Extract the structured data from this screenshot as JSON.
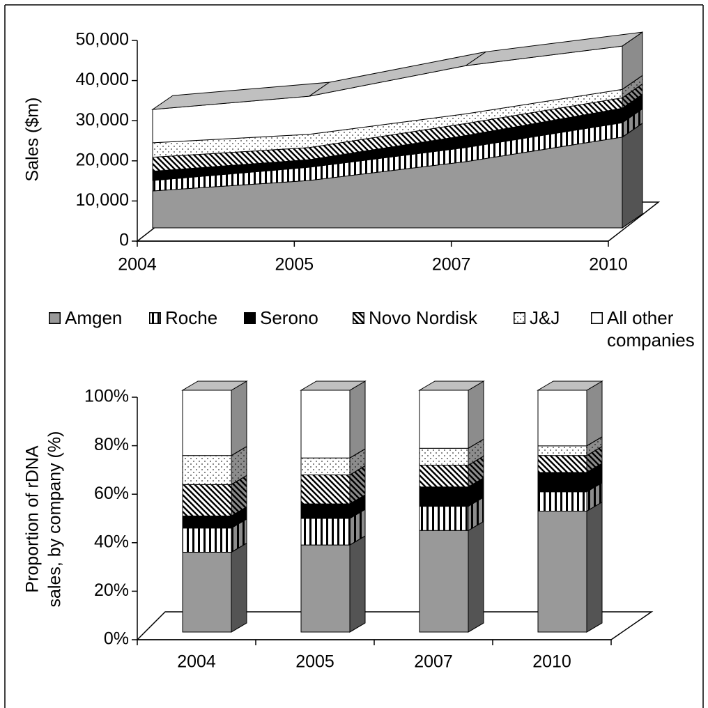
{
  "chart_data": [
    {
      "type": "area",
      "stacked": true,
      "three_d": true,
      "ylabel": "Sales ($m)",
      "categories": [
        "2004",
        "2005",
        "2007",
        "2010"
      ],
      "series": [
        {
          "name": "Amgen",
          "color": "#999999",
          "pattern": "solid",
          "values": [
            9200,
            11800,
            16500,
            22600
          ]
        },
        {
          "name": "Roche",
          "color": "#000000",
          "pattern": "vertical",
          "values": [
            2600,
            3300,
            3500,
            3600
          ]
        },
        {
          "name": "Serono",
          "color": "#000000",
          "pattern": "solid",
          "values": [
            2300,
            1900,
            3000,
            3600
          ]
        },
        {
          "name": "Novo Nordisk",
          "color": "#000000",
          "pattern": "diagonal",
          "values": [
            3500,
            3000,
            3000,
            2600
          ]
        },
        {
          "name": "J&J",
          "color": "#888888",
          "pattern": "dots",
          "values": [
            3600,
            3300,
            2400,
            2100
          ]
        },
        {
          "name": "All other companies",
          "color": "#ffffff",
          "pattern": "solid",
          "values": [
            8300,
            9500,
            12000,
            10800
          ]
        }
      ],
      "ylim": [
        0,
        50000
      ],
      "yticks": [
        0,
        {
          "value": 10000,
          "label": "10,000"
        },
        {
          "value": 20000,
          "label": "20,000"
        },
        {
          "value": 30000,
          "label": "30,000"
        },
        {
          "value": 40000,
          "label": "40,000"
        },
        {
          "value": 50000,
          "label": "50,000"
        }
      ]
    },
    {
      "type": "bar",
      "stacked": true,
      "three_d": true,
      "ylabel": [
        "Proportion of rDNA",
        "sales, by company (%)"
      ],
      "categories": [
        "2004",
        "2005",
        "2007",
        "2010"
      ],
      "series": [
        {
          "color": "#999999",
          "pattern": "solid",
          "values": [
            33,
            36,
            42,
            50
          ]
        },
        {
          "color": "#000000",
          "pattern": "vertical",
          "values": [
            10,
            11,
            10,
            8
          ]
        },
        {
          "color": "#000000",
          "pattern": "solid",
          "values": [
            5,
            6,
            8,
            8
          ]
        },
        {
          "color": "#000000",
          "pattern": "diagonal",
          "values": [
            13,
            12,
            9,
            7
          ]
        },
        {
          "color": "#888888",
          "pattern": "dots",
          "values": [
            12,
            7,
            7,
            4
          ]
        },
        {
          "color": "#ffffff",
          "pattern": "solid",
          "values": [
            27,
            28,
            24,
            23
          ]
        }
      ],
      "ylim": [
        0,
        100
      ],
      "yticks": [
        {
          "value": 0,
          "label": "0%"
        },
        {
          "value": 20,
          "label": "20%"
        },
        {
          "value": 40,
          "label": "40%"
        },
        {
          "value": 60,
          "label": "60%"
        },
        {
          "value": 80,
          "label": "80%"
        },
        {
          "value": 100,
          "label": "100%"
        }
      ]
    }
  ]
}
